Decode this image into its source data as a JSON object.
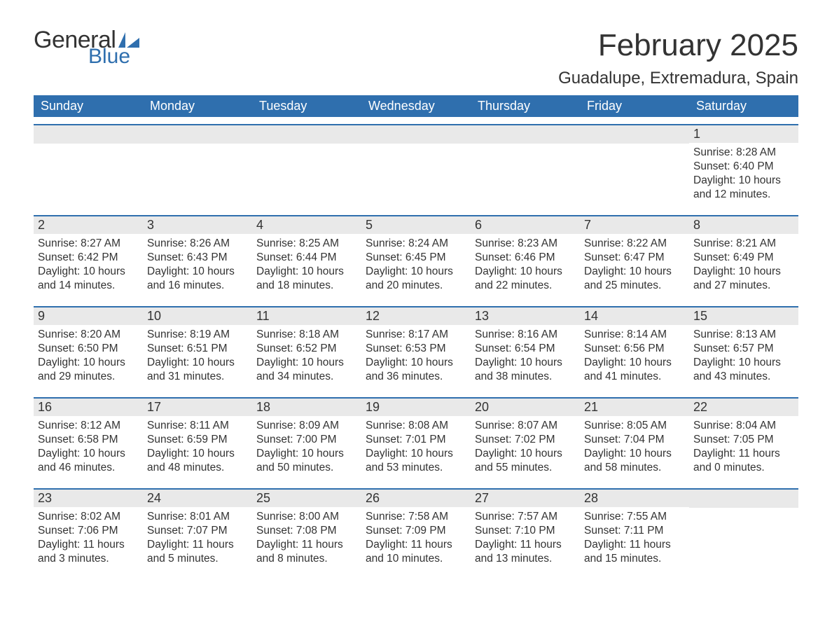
{
  "logo": {
    "general": "General",
    "blue": "Blue"
  },
  "header": {
    "month_title": "February 2025",
    "location": "Guadalupe, Extremadura, Spain"
  },
  "colors": {
    "accent": "#2f6fae",
    "band": "#e9e9e9",
    "text": "#333333",
    "background": "#ffffff"
  },
  "typography": {
    "font_family": "Segoe UI, Arial, sans-serif",
    "month_title_size": 44,
    "location_size": 24,
    "weekday_size": 18,
    "daynum_size": 18,
    "body_size": 15.5
  },
  "weekdays": [
    "Sunday",
    "Monday",
    "Tuesday",
    "Wednesday",
    "Thursday",
    "Friday",
    "Saturday"
  ],
  "weeks": [
    [
      {
        "day": "",
        "sunrise": "",
        "sunset": "",
        "daylight": ""
      },
      {
        "day": "",
        "sunrise": "",
        "sunset": "",
        "daylight": ""
      },
      {
        "day": "",
        "sunrise": "",
        "sunset": "",
        "daylight": ""
      },
      {
        "day": "",
        "sunrise": "",
        "sunset": "",
        "daylight": ""
      },
      {
        "day": "",
        "sunrise": "",
        "sunset": "",
        "daylight": ""
      },
      {
        "day": "",
        "sunrise": "",
        "sunset": "",
        "daylight": ""
      },
      {
        "day": "1",
        "sunrise": "Sunrise: 8:28 AM",
        "sunset": "Sunset: 6:40 PM",
        "daylight": "Daylight: 10 hours and 12 minutes."
      }
    ],
    [
      {
        "day": "2",
        "sunrise": "Sunrise: 8:27 AM",
        "sunset": "Sunset: 6:42 PM",
        "daylight": "Daylight: 10 hours and 14 minutes."
      },
      {
        "day": "3",
        "sunrise": "Sunrise: 8:26 AM",
        "sunset": "Sunset: 6:43 PM",
        "daylight": "Daylight: 10 hours and 16 minutes."
      },
      {
        "day": "4",
        "sunrise": "Sunrise: 8:25 AM",
        "sunset": "Sunset: 6:44 PM",
        "daylight": "Daylight: 10 hours and 18 minutes."
      },
      {
        "day": "5",
        "sunrise": "Sunrise: 8:24 AM",
        "sunset": "Sunset: 6:45 PM",
        "daylight": "Daylight: 10 hours and 20 minutes."
      },
      {
        "day": "6",
        "sunrise": "Sunrise: 8:23 AM",
        "sunset": "Sunset: 6:46 PM",
        "daylight": "Daylight: 10 hours and 22 minutes."
      },
      {
        "day": "7",
        "sunrise": "Sunrise: 8:22 AM",
        "sunset": "Sunset: 6:47 PM",
        "daylight": "Daylight: 10 hours and 25 minutes."
      },
      {
        "day": "8",
        "sunrise": "Sunrise: 8:21 AM",
        "sunset": "Sunset: 6:49 PM",
        "daylight": "Daylight: 10 hours and 27 minutes."
      }
    ],
    [
      {
        "day": "9",
        "sunrise": "Sunrise: 8:20 AM",
        "sunset": "Sunset: 6:50 PM",
        "daylight": "Daylight: 10 hours and 29 minutes."
      },
      {
        "day": "10",
        "sunrise": "Sunrise: 8:19 AM",
        "sunset": "Sunset: 6:51 PM",
        "daylight": "Daylight: 10 hours and 31 minutes."
      },
      {
        "day": "11",
        "sunrise": "Sunrise: 8:18 AM",
        "sunset": "Sunset: 6:52 PM",
        "daylight": "Daylight: 10 hours and 34 minutes."
      },
      {
        "day": "12",
        "sunrise": "Sunrise: 8:17 AM",
        "sunset": "Sunset: 6:53 PM",
        "daylight": "Daylight: 10 hours and 36 minutes."
      },
      {
        "day": "13",
        "sunrise": "Sunrise: 8:16 AM",
        "sunset": "Sunset: 6:54 PM",
        "daylight": "Daylight: 10 hours and 38 minutes."
      },
      {
        "day": "14",
        "sunrise": "Sunrise: 8:14 AM",
        "sunset": "Sunset: 6:56 PM",
        "daylight": "Daylight: 10 hours and 41 minutes."
      },
      {
        "day": "15",
        "sunrise": "Sunrise: 8:13 AM",
        "sunset": "Sunset: 6:57 PM",
        "daylight": "Daylight: 10 hours and 43 minutes."
      }
    ],
    [
      {
        "day": "16",
        "sunrise": "Sunrise: 8:12 AM",
        "sunset": "Sunset: 6:58 PM",
        "daylight": "Daylight: 10 hours and 46 minutes."
      },
      {
        "day": "17",
        "sunrise": "Sunrise: 8:11 AM",
        "sunset": "Sunset: 6:59 PM",
        "daylight": "Daylight: 10 hours and 48 minutes."
      },
      {
        "day": "18",
        "sunrise": "Sunrise: 8:09 AM",
        "sunset": "Sunset: 7:00 PM",
        "daylight": "Daylight: 10 hours and 50 minutes."
      },
      {
        "day": "19",
        "sunrise": "Sunrise: 8:08 AM",
        "sunset": "Sunset: 7:01 PM",
        "daylight": "Daylight: 10 hours and 53 minutes."
      },
      {
        "day": "20",
        "sunrise": "Sunrise: 8:07 AM",
        "sunset": "Sunset: 7:02 PM",
        "daylight": "Daylight: 10 hours and 55 minutes."
      },
      {
        "day": "21",
        "sunrise": "Sunrise: 8:05 AM",
        "sunset": "Sunset: 7:04 PM",
        "daylight": "Daylight: 10 hours and 58 minutes."
      },
      {
        "day": "22",
        "sunrise": "Sunrise: 8:04 AM",
        "sunset": "Sunset: 7:05 PM",
        "daylight": "Daylight: 11 hours and 0 minutes."
      }
    ],
    [
      {
        "day": "23",
        "sunrise": "Sunrise: 8:02 AM",
        "sunset": "Sunset: 7:06 PM",
        "daylight": "Daylight: 11 hours and 3 minutes."
      },
      {
        "day": "24",
        "sunrise": "Sunrise: 8:01 AM",
        "sunset": "Sunset: 7:07 PM",
        "daylight": "Daylight: 11 hours and 5 minutes."
      },
      {
        "day": "25",
        "sunrise": "Sunrise: 8:00 AM",
        "sunset": "Sunset: 7:08 PM",
        "daylight": "Daylight: 11 hours and 8 minutes."
      },
      {
        "day": "26",
        "sunrise": "Sunrise: 7:58 AM",
        "sunset": "Sunset: 7:09 PM",
        "daylight": "Daylight: 11 hours and 10 minutes."
      },
      {
        "day": "27",
        "sunrise": "Sunrise: 7:57 AM",
        "sunset": "Sunset: 7:10 PM",
        "daylight": "Daylight: 11 hours and 13 minutes."
      },
      {
        "day": "28",
        "sunrise": "Sunrise: 7:55 AM",
        "sunset": "Sunset: 7:11 PM",
        "daylight": "Daylight: 11 hours and 15 minutes."
      },
      {
        "day": "",
        "sunrise": "",
        "sunset": "",
        "daylight": ""
      }
    ]
  ]
}
